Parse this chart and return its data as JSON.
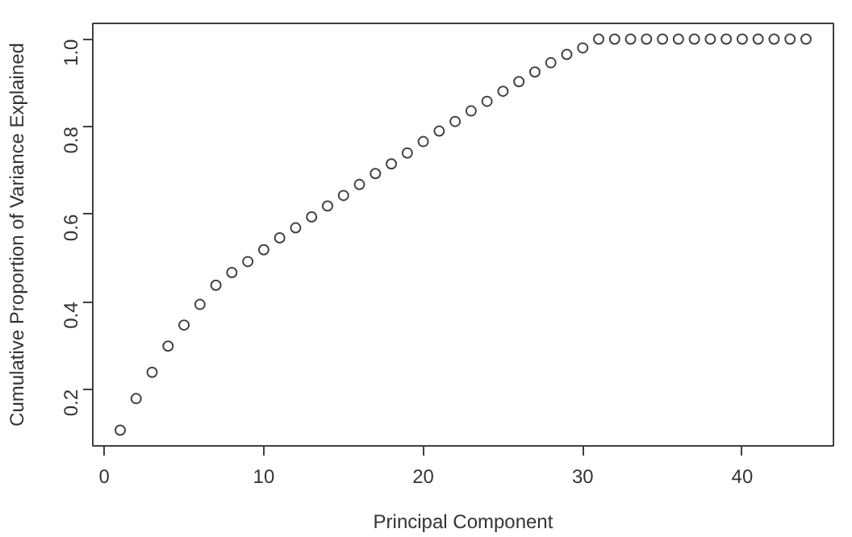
{
  "chart_data": {
    "type": "scatter",
    "xlabel": "Principal Component",
    "ylabel": "Cumulative Proportion of Variance Explained",
    "x": [
      1,
      2,
      3,
      4,
      5,
      6,
      7,
      8,
      9,
      10,
      11,
      12,
      13,
      14,
      15,
      16,
      17,
      18,
      19,
      20,
      21,
      22,
      23,
      24,
      25,
      26,
      27,
      28,
      29,
      30,
      31,
      32,
      33,
      34,
      35,
      36,
      37,
      38,
      39,
      40,
      41,
      42,
      43,
      44
    ],
    "series": [
      {
        "color": "#404040",
        "values": [
          0.107,
          0.179,
          0.239,
          0.299,
          0.347,
          0.394,
          0.438,
          0.467,
          0.492,
          0.519,
          0.546,
          0.569,
          0.594,
          0.619,
          0.643,
          0.668,
          0.693,
          0.715,
          0.74,
          0.766,
          0.79,
          0.812,
          0.836,
          0.858,
          0.881,
          0.903,
          0.925,
          0.946,
          0.965,
          0.98,
          1.0,
          1.0,
          1.0,
          1.0,
          1.0,
          1.0,
          1.0,
          1.0,
          1.0,
          1.0,
          1.0,
          1.0,
          1.0,
          1.0
        ]
      }
    ],
    "marker": "circle",
    "xlim": [
      -0.72,
      45.72
    ],
    "ylim": [
      0.071,
      1.036
    ],
    "xticks": [
      0,
      10,
      20,
      30,
      40
    ],
    "yticks": [
      0.2,
      0.4,
      0.6,
      0.8,
      {
        "value": 1.0,
        "label": "1.0"
      }
    ],
    "grid": false
  }
}
